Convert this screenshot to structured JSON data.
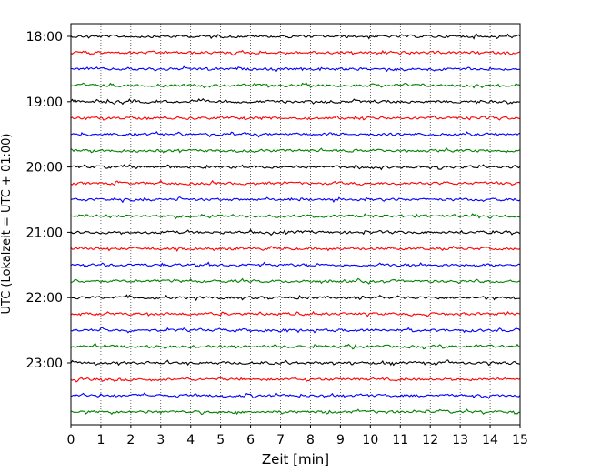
{
  "chart_data": {
    "type": "line",
    "xlabel": "Zeit  [min]",
    "ylabel": "UTC (Lokalzeit = UTC + 01:00)",
    "xlim": [
      0,
      15
    ],
    "xticks": [
      0,
      1,
      2,
      3,
      4,
      5,
      6,
      7,
      8,
      9,
      10,
      11,
      12,
      13,
      14,
      15
    ],
    "yticks": [
      "18:00",
      "19:00",
      "20:00",
      "21:00",
      "22:00",
      "23:00"
    ],
    "grid": "vertical dotted",
    "trace_interval_min": 15,
    "trace_colors": [
      "#000000",
      "#ff0000",
      "#0000ff",
      "#008000"
    ],
    "traces": [
      {
        "start": "18:00",
        "color": "#000000"
      },
      {
        "start": "18:15",
        "color": "#ff0000"
      },
      {
        "start": "18:30",
        "color": "#0000ff"
      },
      {
        "start": "18:45",
        "color": "#008000"
      },
      {
        "start": "19:00",
        "color": "#000000"
      },
      {
        "start": "19:15",
        "color": "#ff0000"
      },
      {
        "start": "19:30",
        "color": "#0000ff"
      },
      {
        "start": "19:45",
        "color": "#008000"
      },
      {
        "start": "20:00",
        "color": "#000000"
      },
      {
        "start": "20:15",
        "color": "#ff0000"
      },
      {
        "start": "20:30",
        "color": "#0000ff"
      },
      {
        "start": "20:45",
        "color": "#008000"
      },
      {
        "start": "21:00",
        "color": "#000000"
      },
      {
        "start": "21:15",
        "color": "#ff0000"
      },
      {
        "start": "21:30",
        "color": "#0000ff"
      },
      {
        "start": "21:45",
        "color": "#008000"
      },
      {
        "start": "22:00",
        "color": "#000000"
      },
      {
        "start": "22:15",
        "color": "#ff0000"
      },
      {
        "start": "22:30",
        "color": "#0000ff"
      },
      {
        "start": "22:45",
        "color": "#008000"
      },
      {
        "start": "23:00",
        "color": "#000000"
      },
      {
        "start": "23:15",
        "color": "#ff0000"
      },
      {
        "start": "23:30",
        "color": "#0000ff"
      },
      {
        "start": "23:45",
        "color": "#008000"
      }
    ]
  }
}
